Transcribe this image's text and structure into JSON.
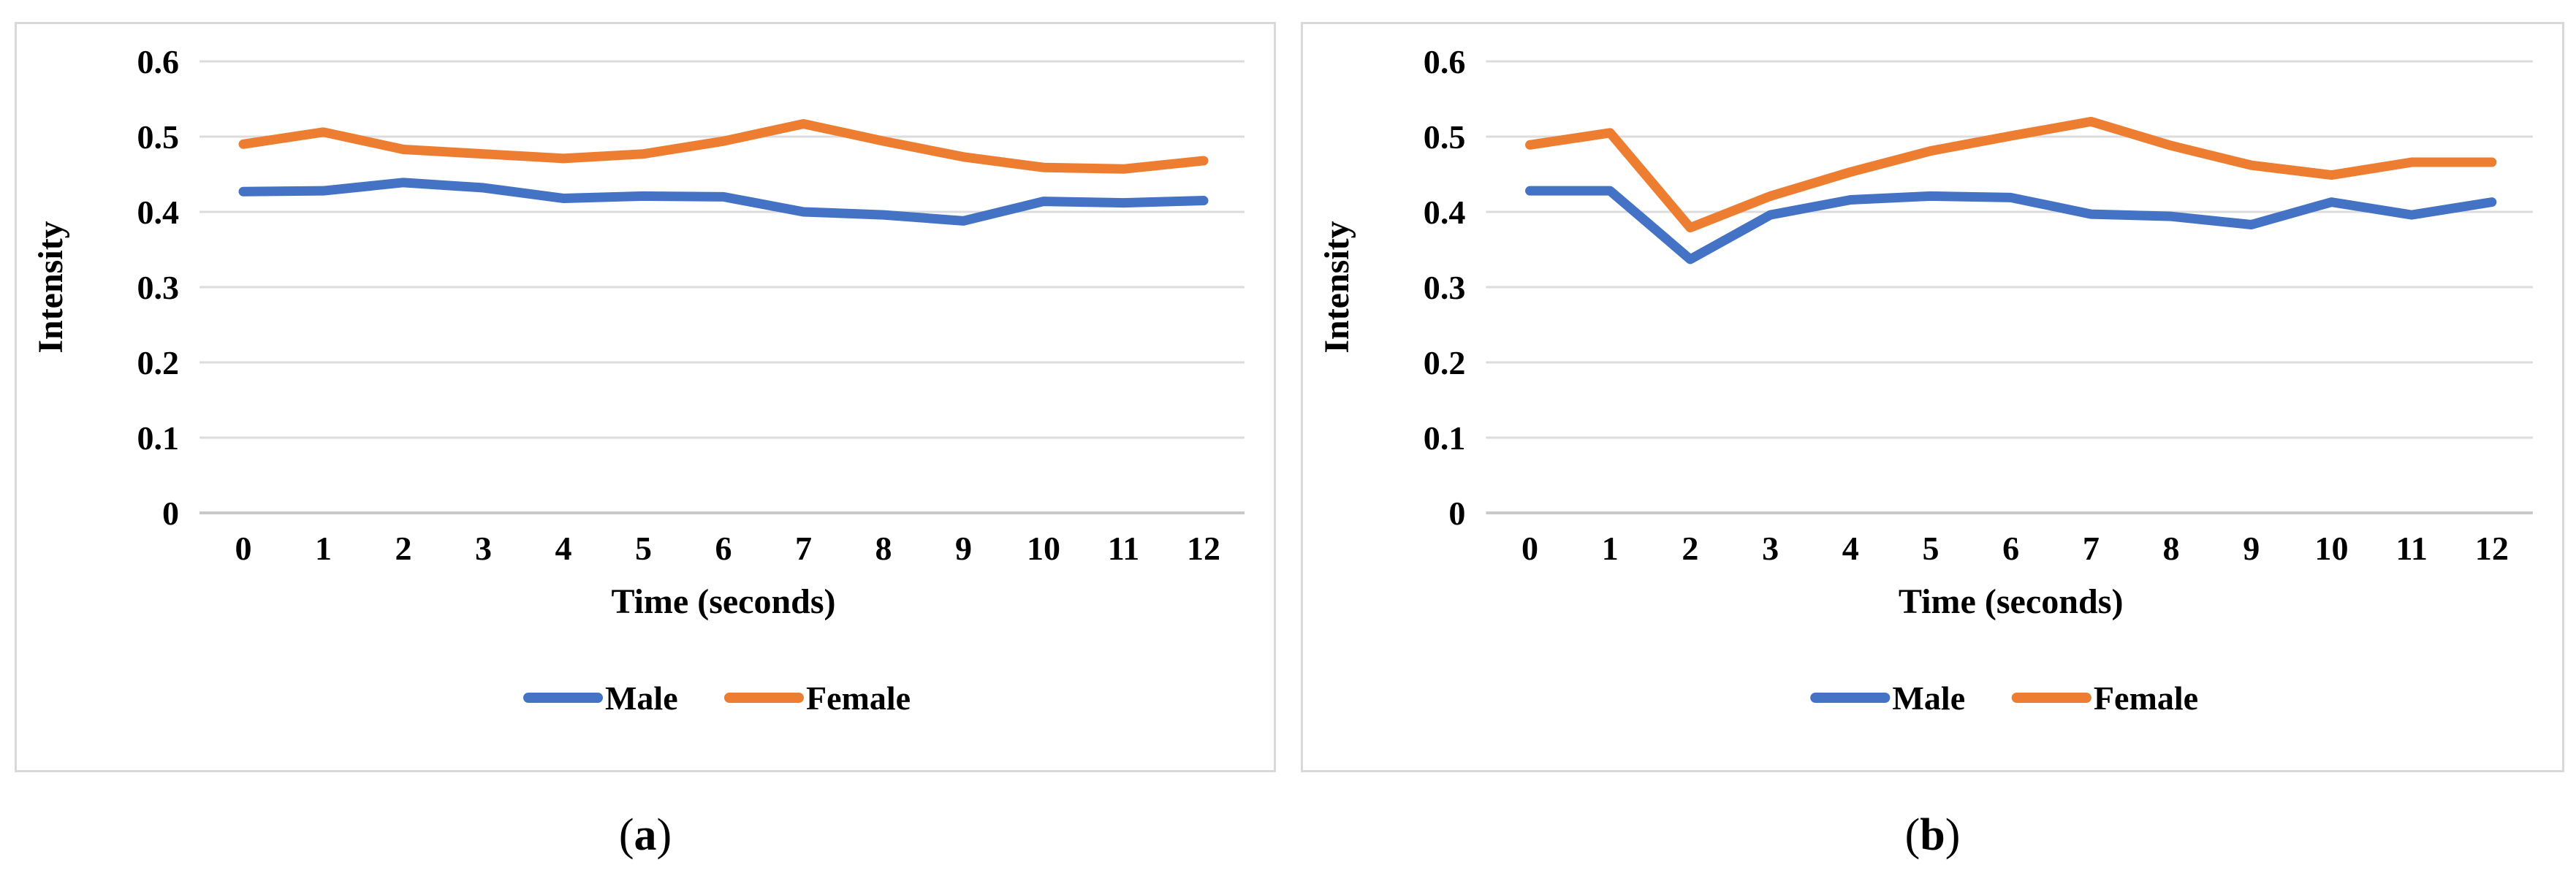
{
  "figure": {
    "background": "#ffffff",
    "panel_border_color": "#d9d9d9",
    "captions": [
      {
        "open": "(",
        "letter": "a",
        "close": ")"
      },
      {
        "open": "(",
        "letter": "b",
        "close": ")"
      }
    ]
  },
  "chart_data": [
    {
      "panel": "a",
      "type": "line",
      "title": "",
      "xlabel": "Time (seconds)",
      "ylabel": "Intensity",
      "x": [
        0,
        1,
        2,
        3,
        4,
        5,
        6,
        7,
        8,
        9,
        10,
        11,
        12
      ],
      "x_tick_labels": [
        "0",
        "1",
        "2",
        "3",
        "4",
        "5",
        "6",
        "7",
        "8",
        "9",
        "10",
        "11",
        "12"
      ],
      "y_tick_values": [
        0,
        0.1,
        0.2,
        0.3,
        0.4,
        0.5,
        0.6
      ],
      "y_tick_labels": [
        "0",
        "0.1",
        "0.2",
        "0.3",
        "0.4",
        "0.5",
        "0.6"
      ],
      "ylim": [
        0,
        0.6
      ],
      "grid": true,
      "gridline_color": "#dcdcdc",
      "zero_line_color": "#c9c9c9",
      "legend_position": "bottom",
      "series": [
        {
          "name": "Male",
          "color": "#4472C4",
          "values": [
            0.427,
            0.428,
            0.439,
            0.432,
            0.418,
            0.421,
            0.42,
            0.4,
            0.396,
            0.388,
            0.414,
            0.412,
            0.415
          ]
        },
        {
          "name": "Female",
          "color": "#ED7D31",
          "values": [
            0.49,
            0.506,
            0.483,
            0.477,
            0.471,
            0.477,
            0.494,
            0.517,
            0.494,
            0.473,
            0.459,
            0.457,
            0.468
          ]
        }
      ]
    },
    {
      "panel": "b",
      "type": "line",
      "title": "",
      "xlabel": "Time (seconds)",
      "ylabel": "Intensity",
      "x": [
        0,
        1,
        2,
        3,
        4,
        5,
        6,
        7,
        8,
        9,
        10,
        11,
        12
      ],
      "x_tick_labels": [
        "0",
        "1",
        "2",
        "3",
        "4",
        "5",
        "6",
        "7",
        "8",
        "9",
        "10",
        "11",
        "12"
      ],
      "y_tick_values": [
        0,
        0.1,
        0.2,
        0.3,
        0.4,
        0.5,
        0.6
      ],
      "y_tick_labels": [
        "0",
        "0.1",
        "0.2",
        "0.3",
        "0.4",
        "0.5",
        "0.6"
      ],
      "ylim": [
        0,
        0.6
      ],
      "grid": true,
      "gridline_color": "#dcdcdc",
      "zero_line_color": "#c9c9c9",
      "legend_position": "bottom",
      "series": [
        {
          "name": "Male",
          "color": "#4472C4",
          "values": [
            0.428,
            0.428,
            0.337,
            0.396,
            0.416,
            0.421,
            0.419,
            0.397,
            0.394,
            0.383,
            0.413,
            0.396,
            0.413
          ]
        },
        {
          "name": "Female",
          "color": "#ED7D31",
          "values": [
            0.489,
            0.505,
            0.379,
            0.421,
            0.453,
            0.481,
            0.501,
            0.52,
            0.488,
            0.462,
            0.449,
            0.466,
            0.466
          ]
        }
      ]
    }
  ]
}
